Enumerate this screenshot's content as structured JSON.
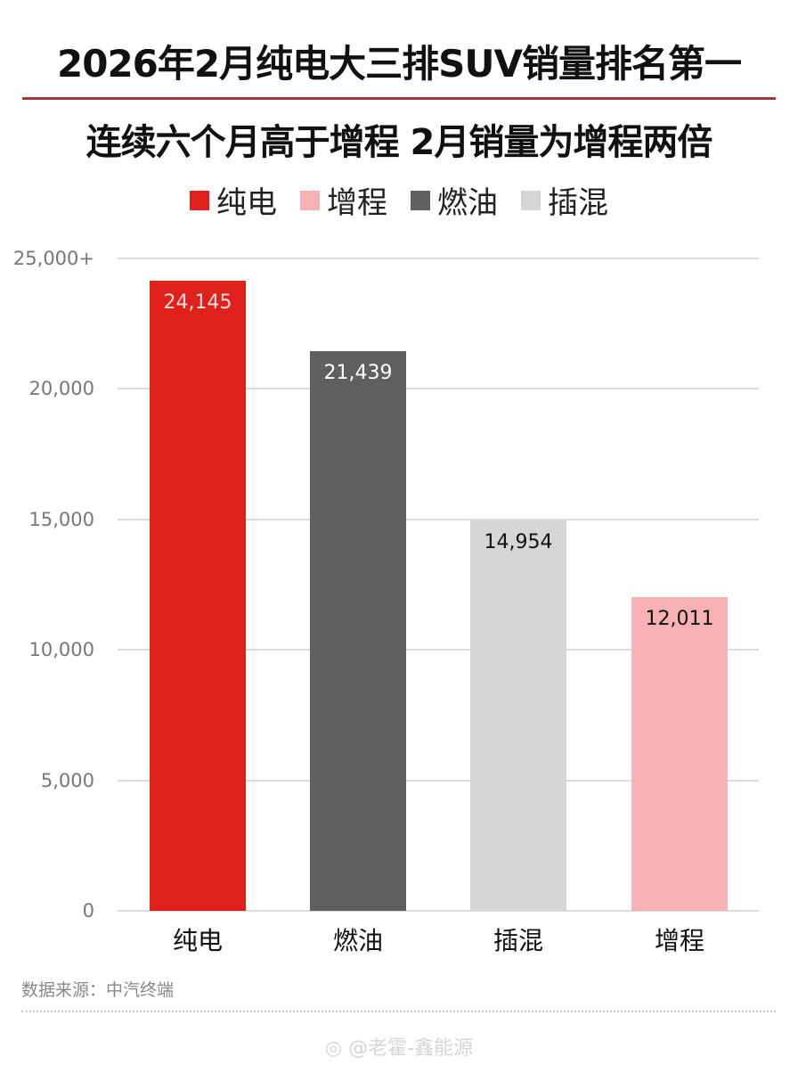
{
  "header": {
    "title": "2026年2月纯电大三排SUV销量排名第一",
    "subtitle": "连续六个月高于增程 2月销量为增程两倍"
  },
  "legend": [
    {
      "label": "纯电",
      "color": "#e0201b"
    },
    {
      "label": "增程",
      "color": "#f7b0b3"
    },
    {
      "label": "燃油",
      "color": "#5f5f5f"
    },
    {
      "label": "插混",
      "color": "#d6d6d6"
    }
  ],
  "chart_data": {
    "type": "bar",
    "title": "2026年2月纯电大三排SUV销量排名第一",
    "subtitle": "连续六个月高于增程 2月销量为增程两倍",
    "categories": [
      "纯电",
      "燃油",
      "插混",
      "增程"
    ],
    "values": [
      24145,
      21439,
      14954,
      12011
    ],
    "value_labels": [
      "24,145",
      "21,439",
      "14,954",
      "12,011"
    ],
    "colors": [
      "#e0201b",
      "#5f5f5f",
      "#d6d6d6",
      "#f7b0b3"
    ],
    "label_colors": [
      "#f5dede",
      "#ffffff",
      "#111111",
      "#111111"
    ],
    "xlabel": "",
    "ylabel": "",
    "ylim": [
      0,
      25000
    ],
    "yticks": [
      0,
      5000,
      10000,
      15000,
      20000,
      25000
    ],
    "ytick_labels": [
      "0",
      "5,000",
      "10,000",
      "15,000",
      "20,000",
      "25,000+"
    ],
    "grid": true,
    "legend_position": "top"
  },
  "footer": {
    "source": "数据来源：中汽终端",
    "watermark": "@老霍-鑫能源"
  }
}
